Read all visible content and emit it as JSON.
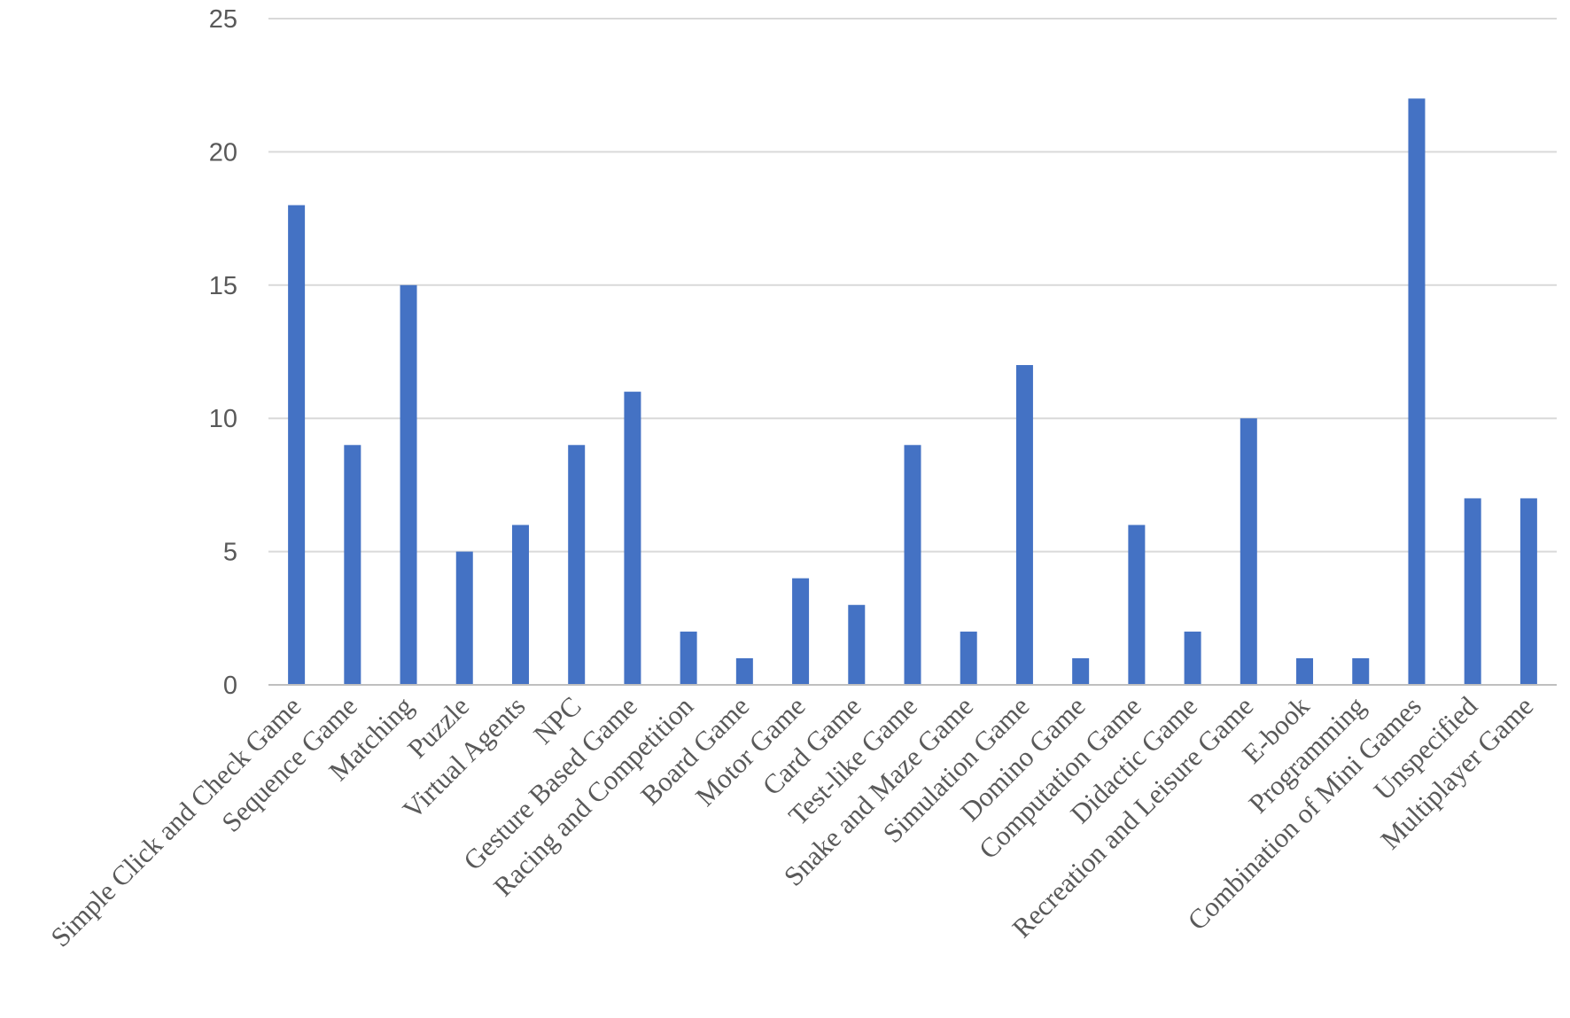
{
  "chart_data": {
    "type": "bar",
    "title": "",
    "xlabel": "",
    "ylabel": "",
    "ylim": [
      0,
      25
    ],
    "yticks": [
      0,
      5,
      10,
      15,
      20,
      25
    ],
    "grid": true,
    "legend": "none",
    "bar_color": "#4472C4",
    "categories": [
      "Simple Click and Check Game",
      "Sequence Game",
      "Matching",
      "Puzzle",
      "Virtual Agents",
      "NPC",
      "Gesture Based Game",
      "Racing and Competition",
      "Board Game",
      "Motor Game",
      "Card Game",
      "Test-like Game",
      "Snake and Maze Game",
      "Simulation Game",
      "Domino Game",
      "Computation Game",
      "Didactic Game",
      "Recreation and Leisure Game",
      "E-book",
      "Programming",
      "Combination of Mini Games",
      "Unspecified",
      "Multiplayer Game"
    ],
    "values": [
      18,
      9,
      15,
      5,
      6,
      9,
      11,
      2,
      1,
      4,
      3,
      9,
      2,
      12,
      1,
      6,
      2,
      10,
      1,
      1,
      22,
      7,
      7
    ]
  }
}
